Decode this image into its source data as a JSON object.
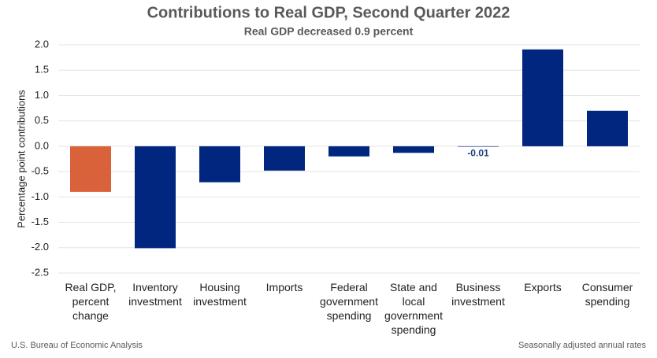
{
  "chart_data": {
    "type": "bar",
    "title": "Contributions to Real GDP, Second Quarter 2022",
    "subtitle": "Real GDP decreased 0.9 percent",
    "y_label": "Percentage point contributions",
    "categories": [
      [
        "Real GDP,",
        "percent",
        "change"
      ],
      [
        "Inventory",
        "investment"
      ],
      [
        "Housing",
        "investment"
      ],
      [
        "Imports"
      ],
      [
        "Federal",
        "government",
        "spending"
      ],
      [
        "State and",
        "local",
        "government",
        "spending"
      ],
      [
        "Business",
        "investment"
      ],
      [
        "Exports"
      ],
      [
        "Consumer",
        "spending"
      ]
    ],
    "values": [
      -0.9,
      -2.01,
      -0.71,
      -0.48,
      -0.2,
      -0.13,
      -0.01,
      1.91,
      0.7
    ],
    "value_labels": [
      null,
      null,
      null,
      null,
      null,
      null,
      "-0.01",
      null,
      null
    ],
    "colors": [
      "#d9623b",
      "#002680",
      "#002680",
      "#002680",
      "#002680",
      "#002680",
      "#002680",
      "#002680",
      "#002680"
    ],
    "ylim": [
      -2.5,
      2.0
    ],
    "yticks": [
      {
        "value": -2.5,
        "label": "-2.5"
      },
      {
        "value": -2,
        "label": "-2.0"
      },
      -1.5,
      {
        "value": -1,
        "label": "-1.0"
      },
      -0.5,
      {
        "value": 0,
        "label": "0.0"
      },
      0.5,
      {
        "value": 1,
        "label": "1.0"
      },
      1.5,
      {
        "value": 2,
        "label": "2.0"
      }
    ],
    "grid": true,
    "source": "U.S. Bureau of Economic Analysis",
    "note": "Seasonally adjusted annual rates"
  }
}
